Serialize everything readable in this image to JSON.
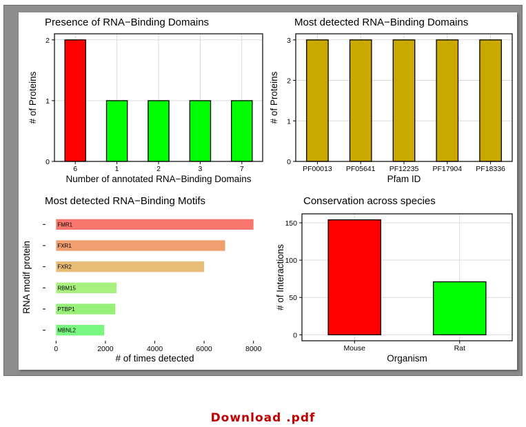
{
  "download_label": "Download .pdf",
  "colors": {
    "red": "#ff0000",
    "green": "#00ff00",
    "gold": "#c9a800",
    "grid": "#d9d9d9",
    "link": "#c00000"
  },
  "chart_data": [
    {
      "id": "presence",
      "type": "bar",
      "title": "Presence of RNA−Binding Domains",
      "xlabel": "Number of annotated RNA−Binding Domains",
      "ylabel": "# of Proteins",
      "categories": [
        "6",
        "1",
        "2",
        "3",
        "7"
      ],
      "values": [
        2,
        1,
        1,
        1,
        1
      ],
      "colors": [
        "#ff0000",
        "#00ff00",
        "#00ff00",
        "#00ff00",
        "#00ff00"
      ],
      "yticks": [
        0,
        1,
        2
      ],
      "ylim": [
        0,
        2.1
      ]
    },
    {
      "id": "pfam",
      "type": "bar",
      "title": "Most detected RNA−Binding Domains",
      "xlabel": "Pfam ID",
      "ylabel": "# of Proteins",
      "categories": [
        "PF00013",
        "PF05641",
        "PF12235",
        "PF17904",
        "PF18336"
      ],
      "values": [
        3,
        3,
        3,
        3,
        3
      ],
      "colors": [
        "#c9a800",
        "#c9a800",
        "#c9a800",
        "#c9a800",
        "#c9a800"
      ],
      "yticks": [
        0,
        1,
        2,
        3
      ],
      "ylim": [
        0,
        3.15
      ]
    },
    {
      "id": "motifs",
      "type": "bar",
      "orientation": "horizontal",
      "title": "Most detected RNA−Binding Motifs",
      "xlabel": "# of times detected",
      "ylabel": "RNA motif protein",
      "categories": [
        "FMR1",
        "FXR1",
        "FXR2",
        "RBM15",
        "PTBP1",
        "MBNL2"
      ],
      "values": [
        8000,
        6850,
        6000,
        2450,
        2400,
        1950
      ],
      "colors": [
        "#f8766d",
        "#f0a070",
        "#e8bd78",
        "#a8f080",
        "#98f078",
        "#78f880"
      ],
      "xticks": [
        0,
        2000,
        4000,
        6000,
        8000
      ],
      "xlim": [
        -400,
        8400
      ]
    },
    {
      "id": "conservation",
      "type": "bar",
      "title": "Conservation across species",
      "xlabel": "Organism",
      "ylabel": "# of Interactions",
      "categories": [
        "Mouse",
        "Rat"
      ],
      "values": [
        154,
        71
      ],
      "colors": [
        "#ff0000",
        "#00ff00"
      ],
      "yticks": [
        0,
        50,
        100,
        150
      ],
      "ylim": [
        -8,
        162
      ]
    }
  ]
}
